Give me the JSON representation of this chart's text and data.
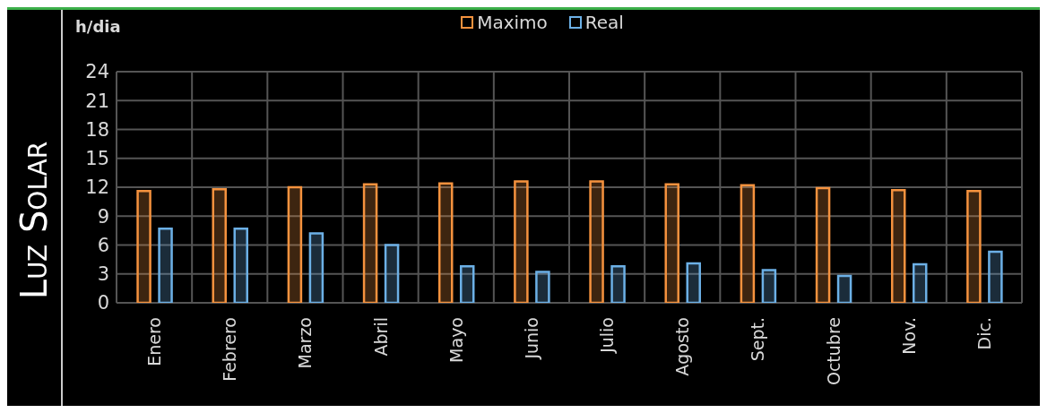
{
  "chart_data": {
    "type": "bar",
    "title": "Luz Solar",
    "ylabel": "h/dia",
    "categories": [
      "Enero",
      "Febrero",
      "Marzo",
      "Abril",
      "Mayo",
      "Junio",
      "Julio",
      "Agosto",
      "Sept.",
      "Octubre",
      "Nov.",
      "Dic."
    ],
    "series": [
      {
        "name": "Maximo",
        "color": "#f5923e",
        "values": [
          11.6,
          11.8,
          12.0,
          12.3,
          12.4,
          12.6,
          12.6,
          12.3,
          12.2,
          11.9,
          11.7,
          11.6
        ]
      },
      {
        "name": "Real",
        "color": "#6cb0e6",
        "values": [
          7.7,
          7.7,
          7.2,
          6.0,
          3.8,
          3.2,
          3.8,
          4.1,
          3.4,
          2.8,
          4.0,
          5.3
        ]
      }
    ],
    "ylim": [
      0,
      24
    ],
    "yticks": [
      0,
      3,
      6,
      9,
      12,
      15,
      18,
      21,
      24
    ],
    "grid": true,
    "legend": "top"
  }
}
